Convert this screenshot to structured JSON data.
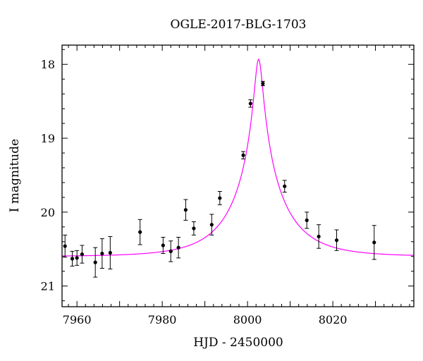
{
  "chart_data": {
    "type": "scatter",
    "title": "OGLE-2017-BLG-1703",
    "xlabel": "HJD - 2450000",
    "ylabel": "I magnitude",
    "xlim": [
      7956.5,
      8039
    ],
    "ylim": [
      21.28,
      17.74
    ],
    "y_inverted": true,
    "grid": false,
    "x_ticks": [
      7960,
      7980,
      8000,
      8020
    ],
    "x_tick_labels": [
      "7960",
      "7980",
      "8000",
      "8020"
    ],
    "y_ticks": [
      18,
      19,
      20,
      21
    ],
    "y_tick_labels": [
      "18",
      "19",
      "20",
      "21"
    ],
    "x_minor_step": 2,
    "y_minor_step": 0.2,
    "model_color": "#ff00ff",
    "point_color": "#000000",
    "model": {
      "t0": 8002.6,
      "tE": 12,
      "u0": 0.075,
      "baseline": 20.6,
      "peak_magnitude": 17.93
    },
    "series": [
      {
        "x": [
          7957.2,
          7958.9,
          7960.0,
          7961.2,
          7964.3,
          7965.9,
          7967.8,
          7974.8,
          7980.2,
          7982.0,
          7983.8,
          7985.5,
          7987.4,
          7991.6,
          7993.5,
          7999.0,
          8000.7,
          8003.6,
          8008.7,
          8013.9,
          8016.7,
          8020.9,
          8029.7
        ],
        "y": [
          20.46,
          20.63,
          20.62,
          20.57,
          20.68,
          20.56,
          20.55,
          20.27,
          20.45,
          20.53,
          20.48,
          19.97,
          20.22,
          20.17,
          19.81,
          19.23,
          18.53,
          18.26,
          19.65,
          20.11,
          20.33,
          20.38,
          20.41
        ],
        "err": [
          0.15,
          0.1,
          0.1,
          0.12,
          0.2,
          0.2,
          0.22,
          0.17,
          0.11,
          0.14,
          0.14,
          0.14,
          0.09,
          0.14,
          0.09,
          0.05,
          0.05,
          0.03,
          0.08,
          0.11,
          0.16,
          0.14,
          0.23
        ]
      }
    ]
  }
}
